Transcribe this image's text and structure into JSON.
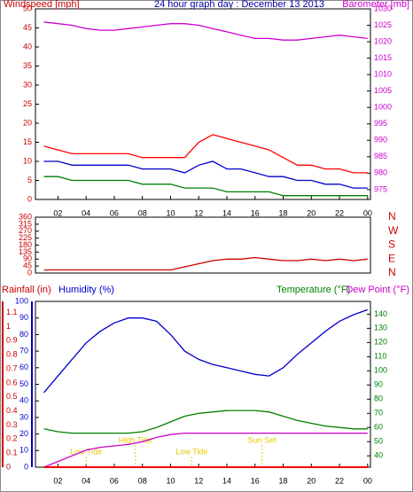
{
  "chart_data": [
    {
      "type": "line",
      "title": "24 hour graph day : December 13 2013",
      "y_label": "Windspeed [mph]",
      "y2_label": "Barometer [mb]",
      "x": [
        1,
        2,
        3,
        4,
        5,
        6,
        7,
        8,
        9,
        10,
        11,
        12,
        13,
        14,
        15,
        16,
        17,
        18,
        19,
        20,
        21,
        22,
        23,
        24
      ],
      "xlim": [
        0.4,
        24.2
      ],
      "xticks": [
        {
          "value": 2,
          "label": "02"
        },
        {
          "value": 4,
          "label": "04"
        },
        {
          "value": 6,
          "label": "06"
        },
        {
          "value": 8,
          "label": "08"
        },
        10,
        12,
        14,
        16,
        18,
        20,
        22,
        {
          "value": 24,
          "label": "00"
        }
      ],
      "ylim": [
        0,
        50
      ],
      "yticks": [
        0,
        5,
        10,
        15,
        20,
        25,
        30,
        35,
        40,
        45,
        50
      ],
      "y2lim": [
        972,
        1030
      ],
      "y2ticks": [
        975,
        980,
        985,
        990,
        995,
        1000,
        1005,
        1010,
        1015,
        1020,
        1025,
        1030
      ],
      "series": [
        {
          "color": "#ff0000",
          "values": [
            14,
            13,
            12,
            12,
            12,
            12,
            12,
            11,
            11,
            11,
            11,
            15,
            17,
            16,
            15,
            14,
            13,
            11,
            9,
            9,
            8,
            8,
            7,
            7
          ]
        },
        {
          "color": "#0000cc",
          "values": [
            10,
            10,
            9,
            9,
            9,
            9,
            9,
            8,
            8,
            8,
            7,
            9,
            10,
            8,
            8,
            7,
            6,
            6,
            5,
            5,
            4,
            4,
            3,
            3
          ]
        },
        {
          "color": "#008000",
          "values": [
            6,
            6,
            5,
            5,
            5,
            5,
            5,
            4,
            4,
            4,
            3,
            3,
            3,
            2,
            2,
            2,
            2,
            1,
            1,
            1,
            1,
            1,
            1,
            1
          ]
        },
        {
          "color": "#cc00cc",
          "axis": "y2",
          "values": [
            1026,
            1025.5,
            1025,
            1024,
            1023.5,
            1023.5,
            1024,
            1024.5,
            1025,
            1025.5,
            1025.5,
            1025,
            1024,
            1023,
            1022,
            1021,
            1021,
            1020.5,
            1020.5,
            1021,
            1021.5,
            1022,
            1021.5,
            1021
          ]
        }
      ]
    },
    {
      "type": "line",
      "x": [
        1,
        2,
        3,
        4,
        5,
        6,
        7,
        8,
        9,
        10,
        11,
        12,
        13,
        14,
        15,
        16,
        17,
        18,
        19,
        20,
        21,
        22,
        23,
        24
      ],
      "xlim": [
        0.4,
        24.2
      ],
      "ylim": [
        0,
        360
      ],
      "yticks": [
        0,
        45,
        90,
        135,
        180,
        225,
        270,
        315,
        360
      ],
      "direction_labels": [
        "N",
        "W",
        "S",
        "E",
        "N"
      ],
      "series": [
        {
          "color": "#cc0000",
          "values": [
            20,
            20,
            20,
            20,
            20,
            20,
            20,
            20,
            20,
            20,
            40,
            60,
            80,
            90,
            90,
            100,
            90,
            80,
            80,
            90,
            80,
            90,
            80,
            90
          ]
        }
      ]
    },
    {
      "type": "line",
      "rain_label": "Rainfall (in)",
      "y_label": "Humidity (%)",
      "y2_label": "Temperature (°F)",
      "y3_label": "Dew Point (°F)",
      "x": [
        1,
        2,
        3,
        4,
        5,
        6,
        7,
        8,
        9,
        10,
        11,
        12,
        13,
        14,
        15,
        16,
        17,
        18,
        19,
        20,
        21,
        22,
        23,
        24
      ],
      "xlim": [
        0.4,
        24.2
      ],
      "xticks": [
        {
          "value": 2,
          "label": "02"
        },
        {
          "value": 4,
          "label": "04"
        },
        {
          "value": 6,
          "label": "06"
        },
        {
          "value": 8,
          "label": "08"
        },
        10,
        12,
        14,
        16,
        18,
        20,
        22,
        {
          "value": 24,
          "label": "00"
        }
      ],
      "rain_lim": [
        0,
        1.18
      ],
      "rain_ticks": [
        0,
        0.1,
        0.2,
        0.3,
        0.4,
        0.5,
        0.6,
        0.7,
        0.8,
        0.9,
        1,
        1.1
      ],
      "ylim": [
        0,
        100
      ],
      "yticks": [
        0,
        10,
        20,
        30,
        40,
        50,
        60,
        70,
        80,
        90,
        100
      ],
      "y2lim": [
        32,
        149
      ],
      "y2ticks": [
        40,
        50,
        60,
        70,
        80,
        90,
        100,
        110,
        120,
        130,
        140
      ],
      "annotations": [
        {
          "text": "Low Tide",
          "x": 4
        },
        {
          "text": "High Tide",
          "x": 7.5
        },
        {
          "text": "Low Tide",
          "x": 11.5
        },
        {
          "text": "Sun Set",
          "x": 16.5
        }
      ],
      "series": [
        {
          "color": "#0000cc",
          "values": [
            45,
            55,
            65,
            75,
            82,
            87,
            90,
            90,
            88,
            80,
            70,
            65,
            62,
            60,
            58,
            56,
            55,
            60,
            68,
            75,
            82,
            88,
            92,
            95
          ]
        },
        {
          "color": "#008000",
          "axis": "y2",
          "values": [
            59,
            57,
            56,
            56,
            56,
            56,
            56,
            57,
            60,
            64,
            68,
            70,
            71,
            72,
            72,
            72,
            71,
            68,
            65,
            63,
            61,
            60,
            59,
            59
          ]
        },
        {
          "color": "#cc00cc",
          "axis": "y2",
          "values": [
            32,
            36,
            40,
            44,
            46,
            47,
            48,
            50,
            53,
            55,
            56,
            56,
            56,
            56,
            56,
            56,
            56,
            56,
            56,
            56,
            56,
            56,
            56,
            56
          ]
        },
        {
          "color": "#ff0000",
          "axis": "rain",
          "values": [
            0,
            0,
            0,
            0,
            0,
            0,
            0,
            0,
            0,
            0,
            0,
            0,
            0,
            0,
            0,
            0,
            0,
            0,
            0,
            0,
            0,
            0,
            0,
            0
          ]
        }
      ]
    }
  ]
}
